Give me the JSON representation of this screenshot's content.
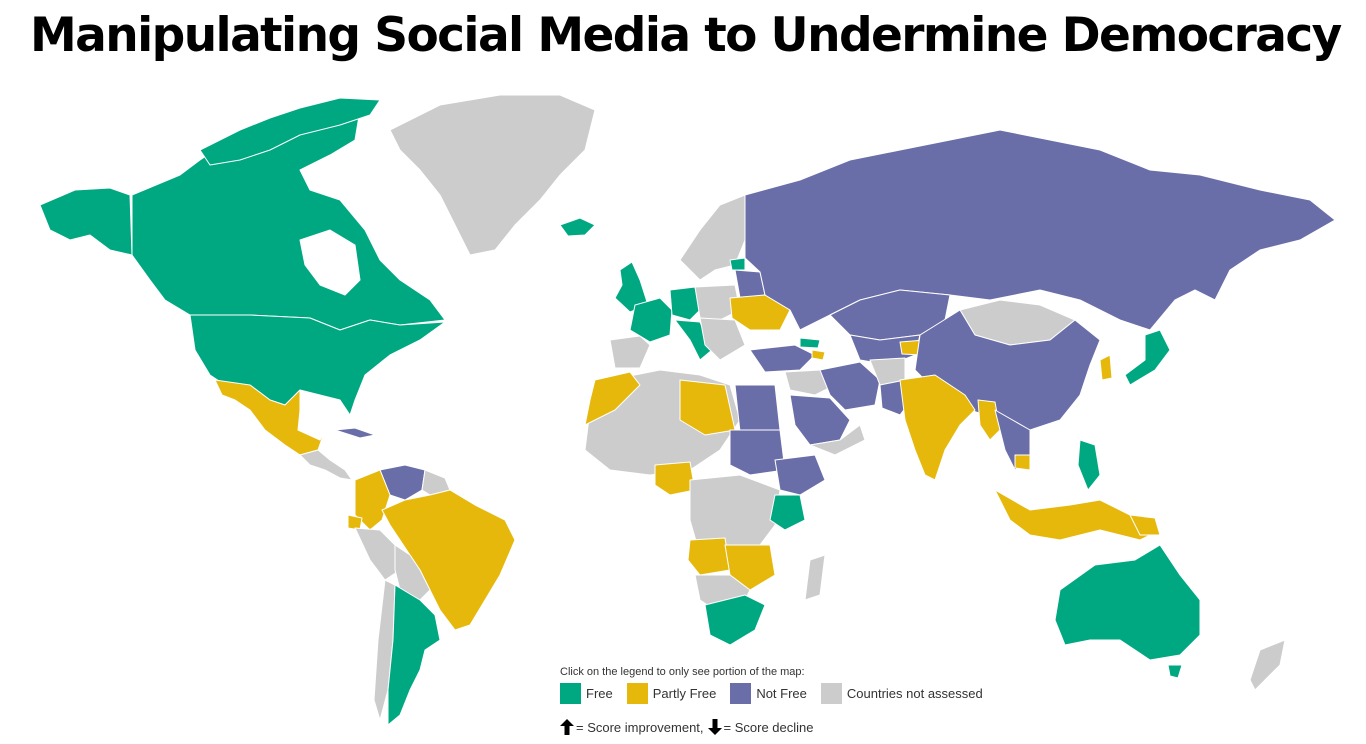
{
  "title": "Manipulating Social Media to Undermine Democracy",
  "legend": {
    "hint": "Click on the legend to only see portion of the map:",
    "items": [
      {
        "label": "Free",
        "color": "#00a882"
      },
      {
        "label": "Partly Free",
        "color": "#e6b80b"
      },
      {
        "label": "Not Free",
        "color": "#6a6ea8"
      },
      {
        "label": "Countries not assessed",
        "color": "#cccccc"
      }
    ]
  },
  "score_key": {
    "improvement": "= Score improvement,",
    "decline": "= Score decline",
    "improvement_icon": "arrow-up-icon",
    "decline_icon": "arrow-down-icon"
  },
  "colors": {
    "free": "#00a882",
    "partly_free": "#e6b80b",
    "not_free": "#6a6ea8",
    "not_assessed": "#cccccc"
  },
  "map_data": {
    "free": [
      "Canada",
      "United States",
      "Argentina",
      "Iceland",
      "United Kingdom",
      "France",
      "Germany",
      "Italy",
      "Estonia",
      "Georgia",
      "Japan",
      "Philippines",
      "Kenya",
      "South Africa",
      "Australia"
    ],
    "partly_free": [
      "Mexico",
      "Colombia",
      "Ecuador",
      "Brazil",
      "Ukraine",
      "Morocco",
      "Libya",
      "Nigeria",
      "Angola",
      "Zambia",
      "Zimbabwe",
      "Malawi",
      "Armenia",
      "Kyrgyzstan",
      "India",
      "Myanmar",
      "Cambodia",
      "Indonesia",
      "Papua New Guinea",
      "South Korea",
      "Lebanon",
      "Uganda"
    ],
    "not_free": [
      "Venezuela",
      "Russia",
      "Belarus",
      "Kazakhstan",
      "Uzbekistan",
      "Turkmenistan",
      "Azerbaijan",
      "Iran",
      "Turkey",
      "Egypt",
      "Sudan",
      "Ethiopia",
      "Saudi Arabia",
      "Bahrain",
      "Pakistan",
      "China",
      "Vietnam",
      "Thailand",
      "Cuba",
      "Syria"
    ]
  }
}
